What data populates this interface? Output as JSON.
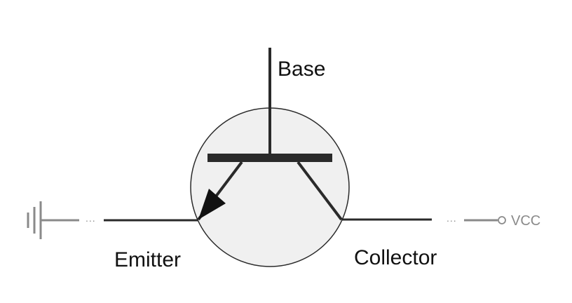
{
  "labels": {
    "base": "Base",
    "emitter": "Emitter",
    "collector": "Collector",
    "vcc": "VCC",
    "dots_left": "...",
    "dots_right": "..."
  },
  "icons": {
    "ground": "ground-symbol-icon",
    "vcc_terminal": "open-circle-terminal-icon"
  },
  "colors": {
    "wire": "#2a2a2a",
    "faded_wire": "#8a8a8a",
    "body_fill": "#f0f0f0",
    "body_stroke": "#2a2a2a",
    "text": "#111111"
  }
}
